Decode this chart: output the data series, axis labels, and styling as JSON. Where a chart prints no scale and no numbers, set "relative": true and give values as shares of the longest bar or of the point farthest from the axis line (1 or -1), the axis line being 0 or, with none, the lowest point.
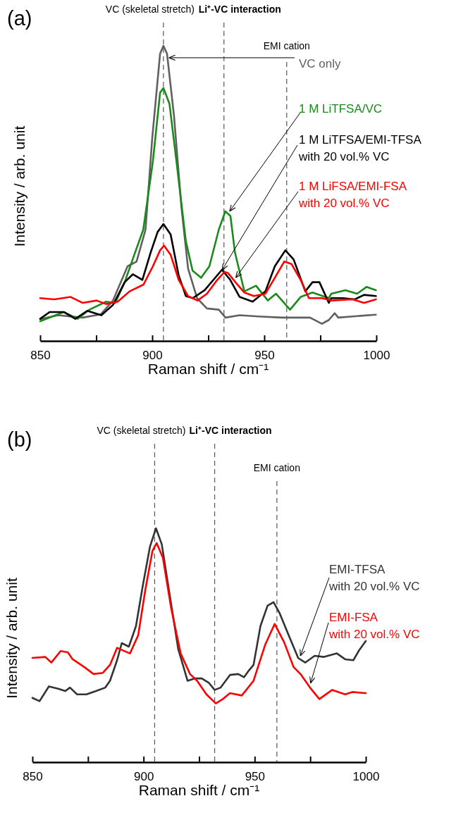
{
  "chart_data": [
    {
      "type": "line",
      "title": "(a)",
      "xlabel": "Raman shift / cm⁻¹",
      "ylabel": "Intensity / arb. unit",
      "relative": true,
      "tick_labels": "x",
      "xlim": [
        850,
        1000
      ],
      "xticks": [
        850,
        {
          "value": 875,
          "label": null
        },
        900,
        {
          "value": 925,
          "label": null
        },
        950,
        {
          "value": 975,
          "label": null
        },
        1000
      ],
      "ref_lines": [
        {
          "axis": "x",
          "value": 905,
          "label": "VC (skeletal stretch)",
          "color": "#555555",
          "line_style": "dashed"
        },
        {
          "axis": "x",
          "value": 932,
          "label": "Li⁺-VC interaction",
          "color": "#555555",
          "line_style": "dashed"
        },
        {
          "axis": "x",
          "value": 960,
          "label": "EMI cation",
          "color": "#555555",
          "line_style": "dashed"
        }
      ],
      "series": [
        {
          "name": "VC only",
          "color": "#606060",
          "x": [
            850,
            858,
            869,
            877,
            882.5,
            889,
            893,
            897,
            900,
            903.5,
            905,
            906.6,
            909.7,
            913,
            916,
            920,
            924.4,
            929.7,
            932.7,
            939,
            947.4,
            957.9,
            970.4,
            975.7,
            978.8,
            981.4,
            983,
            989.3,
            999.8
          ],
          "values": [
            0.074,
            0.087,
            0.079,
            0.09,
            0.137,
            0.253,
            0.269,
            0.377,
            0.687,
            0.973,
            1.0,
            0.973,
            0.764,
            0.455,
            0.245,
            0.145,
            0.11,
            0.106,
            0.079,
            0.087,
            0.083,
            0.079,
            0.079,
            0.058,
            0.071,
            0.094,
            0.079,
            0.083,
            0.089
          ]
        },
        {
          "name": "1 M LiTFSA/VC",
          "color": "#1a8a1a",
          "x": [
            850,
            860.5,
            866.8,
            872,
            879.4,
            883.5,
            887.7,
            892,
            896,
            900.3,
            903.5,
            905,
            907.7,
            910.8,
            915,
            918,
            921.8,
            925.5,
            929.7,
            932.6,
            934.9,
            936.9,
            941.1,
            946.3,
            951.6,
            955.2,
            961.5,
            966.2,
            971.5,
            978.8,
            979.9,
            986.2,
            991.4,
            995.6,
            999.8
          ],
          "values": [
            0.067,
            0.098,
            0.075,
            0.106,
            0.133,
            0.129,
            0.199,
            0.292,
            0.377,
            0.609,
            0.841,
            0.857,
            0.803,
            0.609,
            0.338,
            0.238,
            0.214,
            0.253,
            0.377,
            0.439,
            0.423,
            0.3,
            0.168,
            0.187,
            0.137,
            0.16,
            0.106,
            0.149,
            0.164,
            0.145,
            0.16,
            0.172,
            0.16,
            0.183,
            0.172
          ]
        },
        {
          "name": "1 M LiTFSA/EMI-TFSA\nwith 20 vol.% VC",
          "color": "#000000",
          "x": [
            850,
            854.2,
            860.5,
            865.7,
            871,
            877.3,
            882.5,
            887.7,
            891.4,
            895.6,
            899.3,
            902.4,
            905,
            908.2,
            911.8,
            915,
            918.1,
            923.4,
            931.1,
            934.8,
            939,
            944.8,
            950.5,
            954.7,
            959.4,
            963.1,
            968.3,
            971.5,
            974.6,
            978.8,
            979.9,
            985.1,
            990.4,
            994.5,
            999.8
          ],
          "values": [
            0.075,
            0.098,
            0.098,
            0.075,
            0.102,
            0.087,
            0.122,
            0.199,
            0.226,
            0.207,
            0.3,
            0.369,
            0.396,
            0.361,
            0.222,
            0.152,
            0.145,
            0.172,
            0.241,
            0.207,
            0.149,
            0.133,
            0.168,
            0.253,
            0.307,
            0.276,
            0.168,
            0.199,
            0.199,
            0.129,
            0.145,
            0.145,
            0.141,
            0.156,
            0.152
          ]
        },
        {
          "name": "1 M LiFSA/EMI-FSA\nwith 20 vol.% VC",
          "color": "#ff0000",
          "x": [
            850,
            856.3,
            863.6,
            868.9,
            875.2,
            879.4,
            884.6,
            889.9,
            896.1,
            900.3,
            903.5,
            905.3,
            908.2,
            911.8,
            916,
            920.2,
            924.4,
            928.6,
            932.3,
            933.8,
            938,
            941.1,
            945.3,
            950.5,
            954.7,
            958.9,
            962.1,
            966.2,
            969.9,
            975.7,
            979.9,
            989.3,
            994.5,
            999.8
          ],
          "values": [
            0.145,
            0.141,
            0.149,
            0.129,
            0.137,
            0.125,
            0.133,
            0.168,
            0.191,
            0.253,
            0.307,
            0.323,
            0.292,
            0.207,
            0.152,
            0.137,
            0.16,
            0.203,
            0.234,
            0.23,
            0.191,
            0.164,
            0.152,
            0.16,
            0.214,
            0.269,
            0.261,
            0.207,
            0.145,
            0.145,
            0.137,
            0.141,
            0.129,
            0.141
          ]
        }
      ]
    },
    {
      "type": "line",
      "title": "(b)",
      "xlabel": "Raman shift / cm⁻¹",
      "ylabel": "Intensity / arb. unit",
      "relative": true,
      "tick_labels": "x",
      "xlim": [
        850,
        1000
      ],
      "xticks": [
        850,
        {
          "value": 875,
          "label": null
        },
        900,
        {
          "value": 925,
          "label": null
        },
        950,
        {
          "value": 975,
          "label": null
        },
        1000
      ],
      "ref_lines": [
        {
          "axis": "x",
          "value": 905,
          "label": "VC (skeletal stretch)",
          "color": "#555555",
          "line_style": "dashed"
        },
        {
          "axis": "x",
          "value": 932,
          "label": "Li⁺-VC interaction",
          "color": "#555555",
          "line_style": "dashed"
        },
        {
          "axis": "x",
          "value": 960,
          "label": "EMI cation",
          "color": "#555555",
          "line_style": "dashed"
        }
      ],
      "series": [
        {
          "name": "EMI-TFSA\nwith 20 vol.% VC",
          "color": "#333333",
          "x": [
            850,
            853.2,
            857.4,
            861.6,
            864.8,
            866.9,
            870.1,
            874.3,
            878.6,
            882.8,
            884.9,
            888.1,
            890.2,
            893.4,
            896.6,
            899.7,
            902.9,
            905.6,
            908.2,
            911.4,
            915.6,
            919.8,
            923,
            926.2,
            929.4,
            932,
            934.7,
            938.9,
            942.6,
            945.2,
            947.4,
            949.5,
            952.6,
            955.8,
            958.5,
            961.1,
            965.3,
            969.6,
            972.8,
            977,
            981.2,
            987,
            990.7,
            994.4,
            997.1,
            1000
          ],
          "values": [
            0.275,
            0.261,
            0.324,
            0.314,
            0.304,
            0.319,
            0.29,
            0.29,
            0.304,
            0.319,
            0.348,
            0.436,
            0.509,
            0.494,
            0.582,
            0.757,
            0.922,
            1.0,
            0.932,
            0.737,
            0.484,
            0.348,
            0.358,
            0.358,
            0.339,
            0.309,
            0.319,
            0.373,
            0.377,
            0.363,
            0.392,
            0.416,
            0.582,
            0.669,
            0.684,
            0.64,
            0.543,
            0.445,
            0.426,
            0.455,
            0.45,
            0.465,
            0.44,
            0.436,
            0.48,
            0.518
          ]
        },
        {
          "name": "EMI-FSA\nwith 20 vol.% VC",
          "color": "#ff0000",
          "x": [
            850,
            855.8,
            858.5,
            862.7,
            865.9,
            868,
            873.3,
            877.5,
            881.7,
            884.9,
            888.1,
            890.2,
            893.9,
            897.6,
            900.8,
            904,
            905.9,
            908.7,
            912.4,
            916.7,
            920.9,
            924.1,
            928.3,
            932.5,
            935.7,
            938.9,
            944.2,
            949.5,
            954.8,
            959,
            963.2,
            967.5,
            970.6,
            974.9,
            979.1,
            984.9,
            990.7,
            993.9,
            1000
          ],
          "values": [
            0.446,
            0.45,
            0.426,
            0.475,
            0.47,
            0.441,
            0.407,
            0.377,
            0.382,
            0.416,
            0.489,
            0.48,
            0.465,
            0.543,
            0.737,
            0.903,
            0.937,
            0.874,
            0.66,
            0.465,
            0.377,
            0.348,
            0.29,
            0.251,
            0.27,
            0.295,
            0.285,
            0.348,
            0.504,
            0.591,
            0.514,
            0.407,
            0.377,
            0.319,
            0.27,
            0.309,
            0.29,
            0.3,
            0.295
          ]
        }
      ]
    }
  ]
}
